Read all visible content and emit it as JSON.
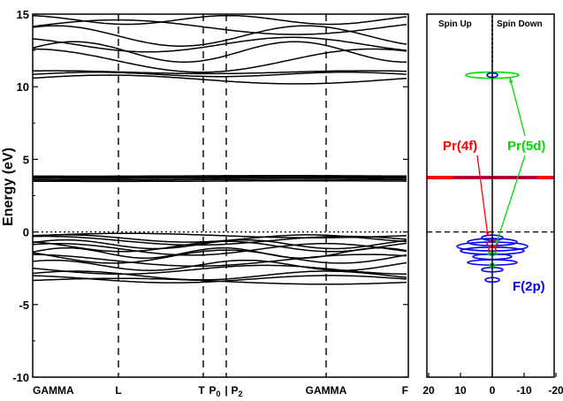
{
  "chart_data": [
    {
      "type": "line",
      "panel": "band-structure",
      "ylabel": "Energy (eV)",
      "ylim": [
        -10,
        15
      ],
      "yticks": [
        "15",
        "10",
        "5",
        "0",
        "-5",
        "-10"
      ],
      "xticks": [
        "GAMMA",
        "L",
        "T",
        "P",
        "P",
        "GAMMA",
        "F"
      ],
      "xtick_subscripts": [
        "",
        "",
        "",
        "0",
        "2",
        "",
        ""
      ],
      "xtick_separators": [
        "",
        "",
        "",
        "|",
        "",
        "",
        ""
      ],
      "fermi_level": 0,
      "band_groups": [
        {
          "name": "F(2p)",
          "range": [
            -3.6,
            -0.2
          ]
        },
        {
          "name": "Pr(4f)",
          "range": [
            3.5,
            3.9
          ]
        },
        {
          "name": "Pr(5d)",
          "range": [
            10.3,
            15
          ]
        }
      ]
    },
    {
      "type": "line",
      "panel": "pdos",
      "header_left": "Spin Up",
      "header_right": "Spin Down",
      "xticks": [
        "20",
        "10",
        "0",
        "-10",
        "-20"
      ],
      "xlim": [
        20,
        -20
      ],
      "ylim": [
        -10,
        15
      ],
      "series": [
        {
          "name": "Pr(4f)",
          "color": "#ff0000",
          "peak_energy": 3.75
        },
        {
          "name": "Pr(5d)",
          "color": "#00dd00",
          "peak_energy": 10.8
        },
        {
          "name": "F(2p)",
          "color": "#0000ff",
          "peak_energy": -1.2
        }
      ]
    }
  ],
  "colors": {
    "pr4f": "#ff0000",
    "pr5d": "#00dd00",
    "f2p": "#0000ff"
  }
}
